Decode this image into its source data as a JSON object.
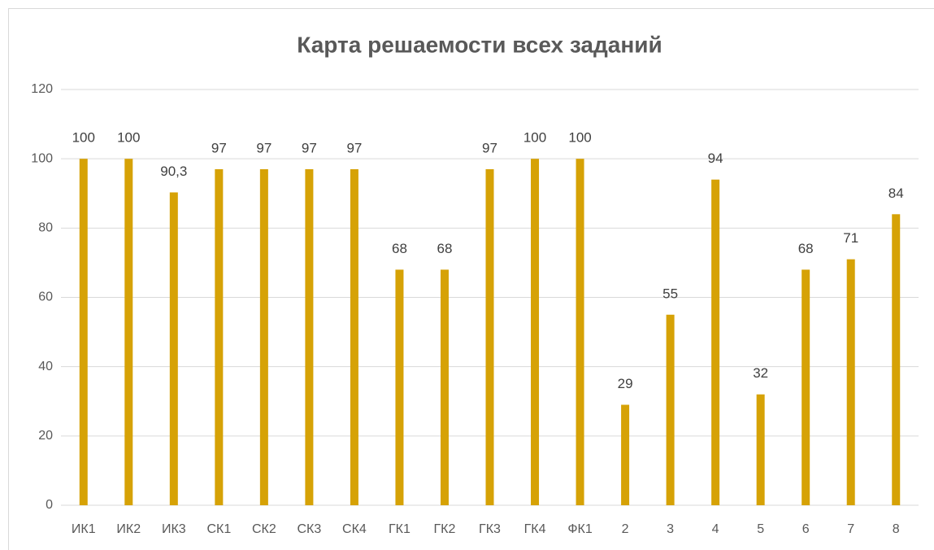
{
  "chart_data": {
    "type": "bar",
    "title": "Карта решаемости всех заданий",
    "categories": [
      "ИК1",
      "ИК2",
      "ИК3",
      "СК1",
      "СК2",
      "СК3",
      "СК4",
      "ГК1",
      "ГК2",
      "ГК3",
      "ГК4",
      "ФК1",
      "2",
      "3",
      "4",
      "5",
      "6",
      "7",
      "8"
    ],
    "values": [
      100,
      100,
      90.3,
      97,
      97,
      97,
      97,
      68,
      68,
      97,
      100,
      100,
      29,
      55,
      94,
      32,
      68,
      71,
      84
    ],
    "value_labels": [
      "100",
      "100",
      "90,3",
      "97",
      "97",
      "97",
      "97",
      "68",
      "68",
      "97",
      "100",
      "100",
      "29",
      "55",
      "94",
      "32",
      "68",
      "71",
      "84"
    ],
    "color": "#d6a206",
    "ylim": [
      0,
      120
    ],
    "yticks": [
      0,
      20,
      40,
      60,
      80,
      100,
      120
    ],
    "grid": true
  }
}
